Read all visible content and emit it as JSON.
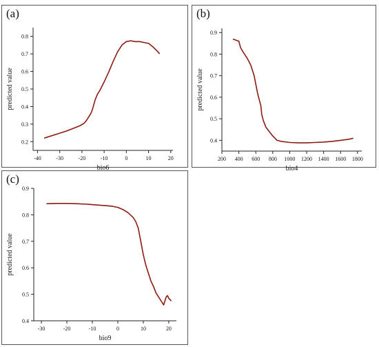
{
  "colors": {
    "curve": "#8b1a0e",
    "axis": "#222222",
    "frame": "#555555"
  },
  "chart_data": [
    {
      "id": "a",
      "panel_label": "(a)",
      "type": "line",
      "xlabel": "bio6",
      "ylabel": "predicted value",
      "xlim": [
        -42,
        21
      ],
      "ylim": [
        0.15,
        0.85
      ],
      "xticks": [
        -40,
        -30,
        -20,
        -10,
        0,
        10,
        20
      ],
      "yticks": [
        0.2,
        0.3,
        0.4,
        0.5,
        0.6,
        0.7,
        0.8
      ],
      "grid": false,
      "series": [
        {
          "x": [
            -37,
            -32,
            -27,
            -24,
            -21,
            -19,
            -18,
            -17,
            -16,
            -15.5,
            -15,
            -14,
            -13,
            -12,
            -10,
            -8,
            -6,
            -4,
            -2,
            0,
            2,
            4,
            6,
            8,
            10,
            12,
            14,
            15
          ],
          "y": [
            0.22,
            0.24,
            0.26,
            0.275,
            0.29,
            0.305,
            0.32,
            0.34,
            0.36,
            0.375,
            0.395,
            0.44,
            0.47,
            0.49,
            0.54,
            0.595,
            0.655,
            0.71,
            0.75,
            0.77,
            0.775,
            0.77,
            0.77,
            0.765,
            0.76,
            0.74,
            0.715,
            0.7
          ]
        }
      ]
    },
    {
      "id": "b",
      "panel_label": "(b)",
      "type": "line",
      "xlabel": "bio4",
      "ylabel": "predicted value",
      "xlim": [
        200,
        1850
      ],
      "ylim": [
        0.35,
        0.92
      ],
      "xticks": [
        200,
        400,
        600,
        800,
        1000,
        1200,
        1400,
        1600,
        1800
      ],
      "yticks": [
        0.4,
        0.5,
        0.6,
        0.7,
        0.8,
        0.9
      ],
      "grid": false,
      "series": [
        {
          "x": [
            330,
            400,
            420,
            450,
            500,
            540,
            580,
            620,
            640,
            660,
            670,
            690,
            720,
            760,
            800,
            850,
            900,
            1000,
            1100,
            1200,
            1300,
            1400,
            1500,
            1600,
            1700,
            1750
          ],
          "y": [
            0.87,
            0.86,
            0.83,
            0.81,
            0.78,
            0.75,
            0.7,
            0.62,
            0.59,
            0.56,
            0.52,
            0.49,
            0.46,
            0.44,
            0.42,
            0.4,
            0.395,
            0.39,
            0.388,
            0.388,
            0.39,
            0.392,
            0.395,
            0.4,
            0.405,
            0.41
          ]
        }
      ]
    },
    {
      "id": "c",
      "panel_label": "(c)",
      "type": "line",
      "xlabel": "bio9",
      "ylabel": "predicted value",
      "xlim": [
        -33,
        23
      ],
      "ylim": [
        0.4,
        0.9
      ],
      "xticks": [
        -30,
        -20,
        -10,
        0,
        10,
        20
      ],
      "yticks": [
        0.4,
        0.5,
        0.6,
        0.7,
        0.8,
        0.9
      ],
      "grid": false,
      "series": [
        {
          "x": [
            -28,
            -24,
            -20,
            -16,
            -12,
            -8,
            -4,
            -2,
            0,
            2,
            4,
            6,
            7,
            8,
            9,
            10,
            11,
            12,
            13,
            14,
            15,
            16,
            17,
            18,
            19,
            19.5,
            20,
            21
          ],
          "y": [
            0.842,
            0.843,
            0.843,
            0.842,
            0.84,
            0.837,
            0.834,
            0.832,
            0.828,
            0.82,
            0.808,
            0.79,
            0.775,
            0.75,
            0.7,
            0.65,
            0.61,
            0.58,
            0.55,
            0.53,
            0.505,
            0.49,
            0.475,
            0.46,
            0.49,
            0.495,
            0.485,
            0.475
          ]
        }
      ]
    }
  ]
}
